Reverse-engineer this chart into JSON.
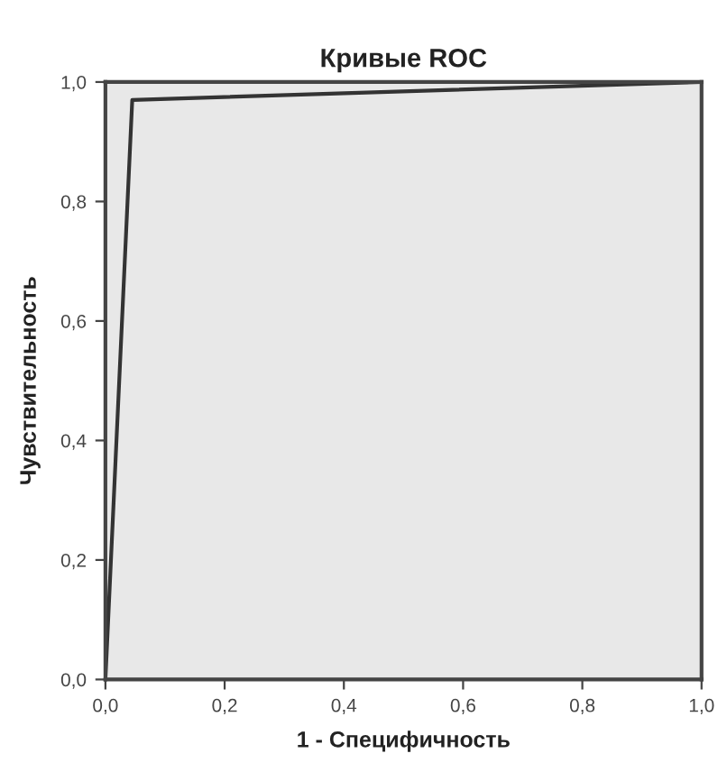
{
  "chart_data": {
    "type": "line",
    "title": "Кривые ROC",
    "xlabel": "1 - Специфичность",
    "ylabel": "Чувствительность",
    "x": [
      0,
      0.045,
      1
    ],
    "series": [
      {
        "color": "#333333",
        "values": [
          0,
          0.97,
          1
        ]
      }
    ],
    "xlim": [
      0,
      1
    ],
    "ylim": [
      0,
      1
    ],
    "xticks": [
      {
        "value": 0,
        "label": "0,0"
      },
      {
        "value": 0.2,
        "label": "0,2"
      },
      {
        "value": 0.4,
        "label": "0,4"
      },
      {
        "value": 0.6,
        "label": "0,6"
      },
      {
        "value": 0.8,
        "label": "0,8"
      },
      {
        "value": 1,
        "label": "1,0"
      }
    ],
    "yticks": [
      {
        "value": 0,
        "label": "0,0"
      },
      {
        "value": 0.2,
        "label": "0,2"
      },
      {
        "value": 0.4,
        "label": "0,4"
      },
      {
        "value": 0.6,
        "label": "0,6"
      },
      {
        "value": 0.8,
        "label": "0,8"
      },
      {
        "value": 1,
        "label": "1,0"
      }
    ],
    "grid": false,
    "legend": false,
    "marker": "none",
    "line_style": "solid"
  }
}
